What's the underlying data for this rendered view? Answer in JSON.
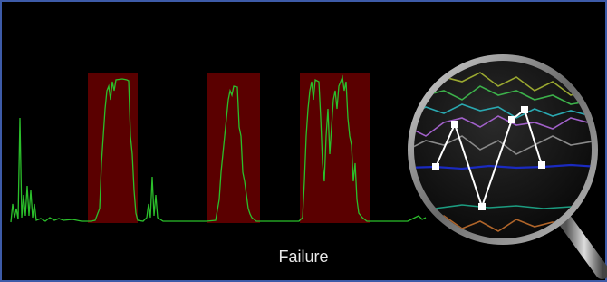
{
  "caption": "Failure"
}
